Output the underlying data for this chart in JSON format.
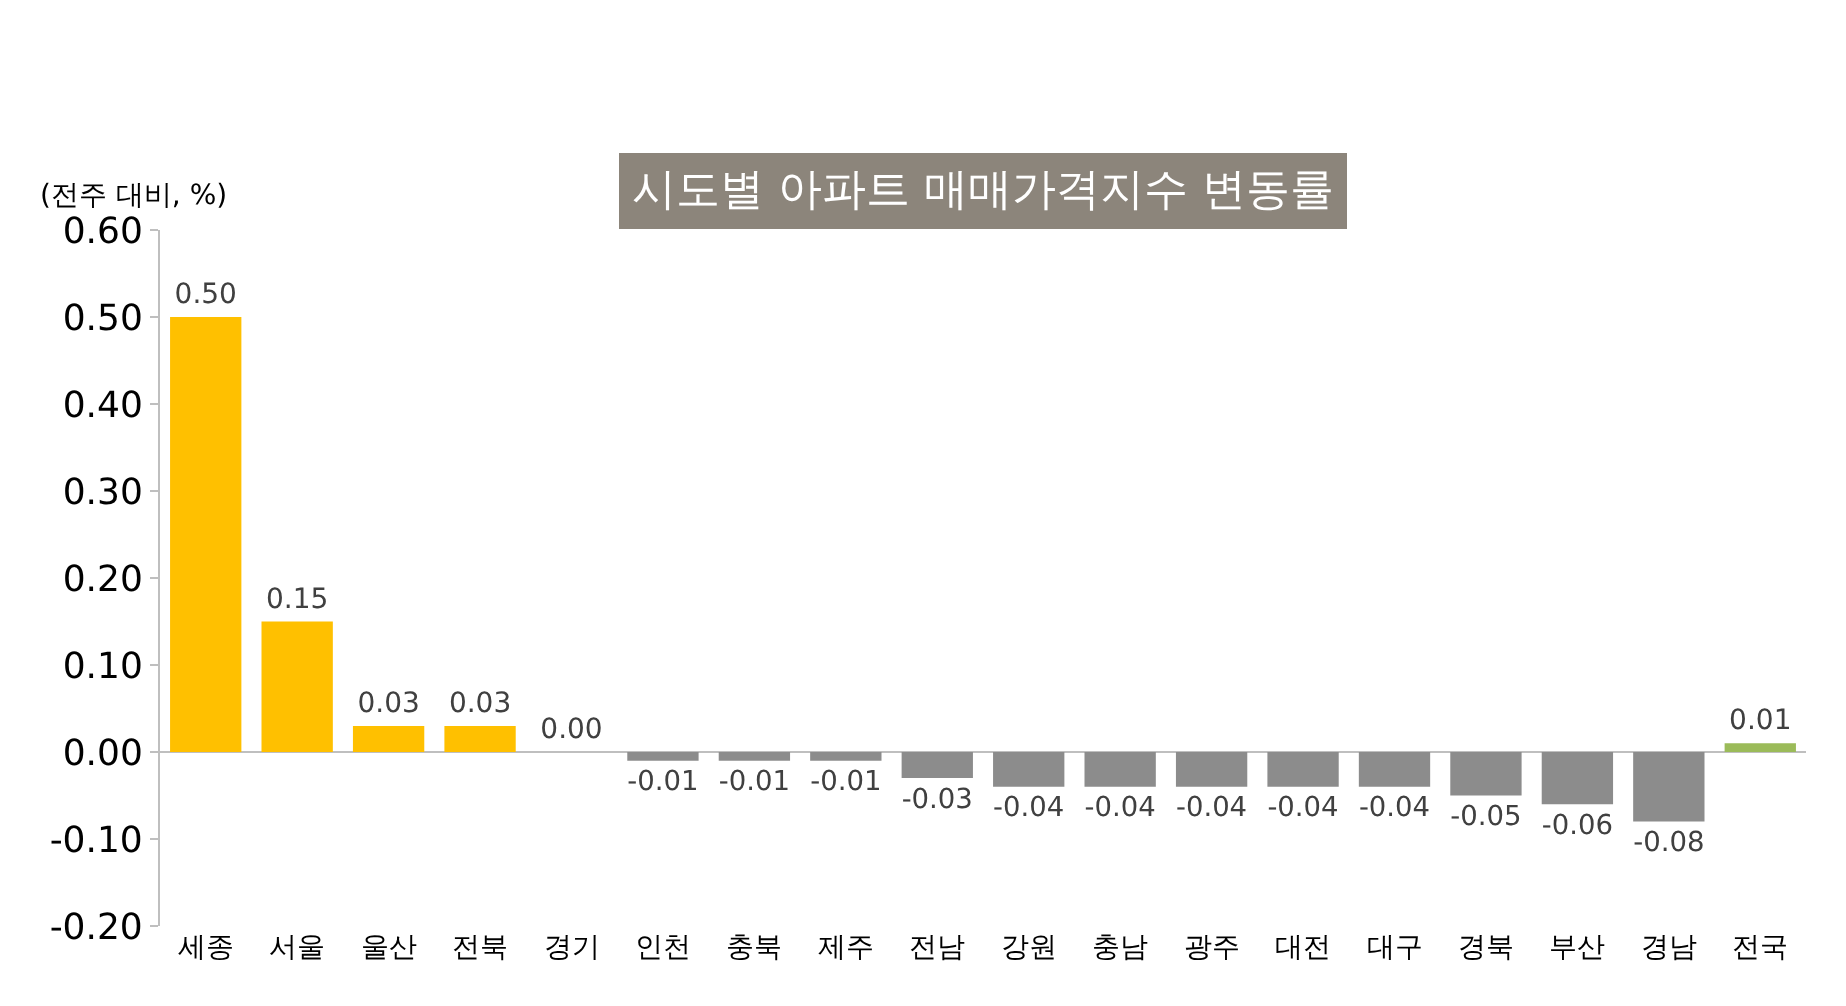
{
  "chart_data": {
    "type": "bar",
    "title": "시도별 아파트 매매가격지수 변동률",
    "ylabel": "(전주 대비, %)",
    "categories": [
      "세종",
      "서울",
      "울산",
      "전북",
      "경기",
      "인천",
      "충북",
      "제주",
      "전남",
      "강원",
      "충남",
      "광주",
      "대전",
      "대구",
      "경북",
      "부산",
      "경남",
      "전국"
    ],
    "values": [
      0.5,
      0.15,
      0.03,
      0.03,
      0.0,
      -0.01,
      -0.01,
      -0.01,
      -0.03,
      -0.04,
      -0.04,
      -0.04,
      -0.04,
      -0.04,
      -0.05,
      -0.06,
      -0.08,
      0.01
    ],
    "colors": [
      "#ffc000",
      "#ffc000",
      "#ffc000",
      "#ffc000",
      "#ffc000",
      "#8c8c8c",
      "#8c8c8c",
      "#8c8c8c",
      "#8c8c8c",
      "#8c8c8c",
      "#8c8c8c",
      "#8c8c8c",
      "#8c8c8c",
      "#8c8c8c",
      "#8c8c8c",
      "#8c8c8c",
      "#8c8c8c",
      "#9bbb59"
    ],
    "ylim": [
      -0.2,
      0.6
    ],
    "yticks": [
      {
        "value": -0.2,
        "label": "-0.20"
      },
      {
        "value": -0.1,
        "label": "-0.10"
      },
      {
        "value": 0,
        "label": "0.00"
      },
      {
        "value": 0.1,
        "label": "0.10"
      },
      {
        "value": 0.2,
        "label": "0.20"
      },
      {
        "value": 0.3,
        "label": "0.30"
      },
      {
        "value": 0.4,
        "label": "0.40"
      },
      {
        "value": 0.5,
        "label": "0.50"
      },
      {
        "value": 0.6,
        "label": "0.60"
      }
    ],
    "value_labels": [
      "0.50",
      "0.15",
      "0.03",
      "0.03",
      "0.00",
      "-0.01",
      "-0.01",
      "-0.01",
      "-0.03",
      "-0.04",
      "-0.04",
      "-0.04",
      "-0.04",
      "-0.04",
      "-0.05",
      "-0.06",
      "-0.08",
      "0.01"
    ]
  }
}
